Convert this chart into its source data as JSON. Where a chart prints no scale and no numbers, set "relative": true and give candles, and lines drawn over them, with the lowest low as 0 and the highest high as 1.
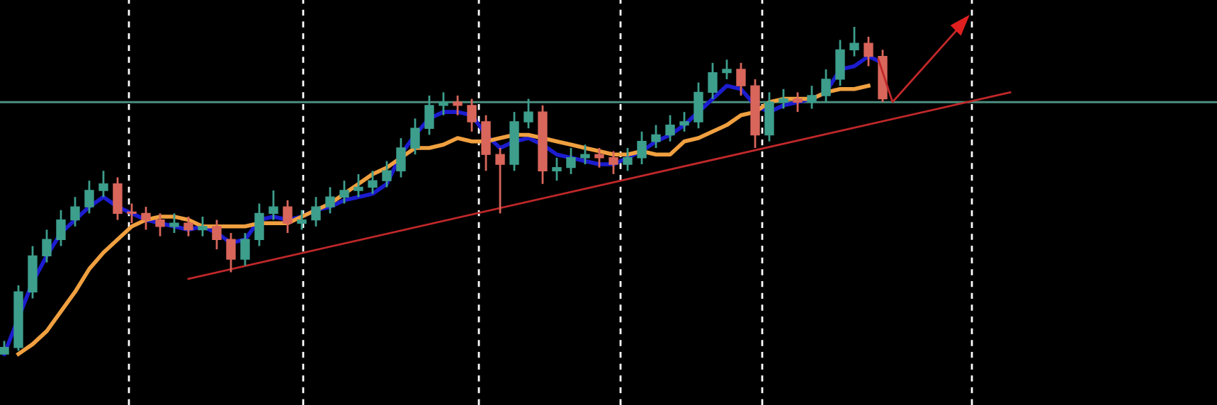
{
  "chart_data": {
    "type": "candlestick",
    "relative": true,
    "categories": [
      null,
      null,
      null,
      null,
      null,
      null,
      null,
      null,
      null,
      null,
      null,
      null,
      null,
      null,
      null,
      null,
      null,
      null,
      null,
      null,
      null,
      null,
      null,
      null,
      null,
      null,
      null,
      null,
      null,
      null,
      null,
      null,
      null,
      null,
      null,
      null,
      null,
      null,
      null,
      null,
      null,
      null,
      null,
      null,
      null,
      null,
      null,
      null,
      null,
      null,
      null,
      null,
      null,
      null,
      null,
      null,
      null,
      null,
      null,
      null,
      null,
      null,
      null,
      null,
      null,
      null,
      null,
      null,
      null,
      null,
      null,
      null,
      null,
      null,
      null,
      null,
      null,
      null,
      null,
      null,
      null,
      null,
      null,
      null,
      null,
      null
    ],
    "ohlc": [
      [
        0.0,
        0.04,
        0.0,
        0.02
      ],
      [
        0.02,
        0.21,
        0.01,
        0.19
      ],
      [
        0.19,
        0.33,
        0.17,
        0.3
      ],
      [
        0.3,
        0.38,
        0.28,
        0.35
      ],
      [
        0.35,
        0.44,
        0.33,
        0.41
      ],
      [
        0.41,
        0.48,
        0.39,
        0.45
      ],
      [
        0.45,
        0.53,
        0.43,
        0.5
      ],
      [
        0.5,
        0.56,
        0.48,
        0.52
      ],
      [
        0.52,
        0.54,
        0.41,
        0.43
      ],
      [
        0.43,
        0.46,
        0.4,
        0.43
      ],
      [
        0.43,
        0.45,
        0.38,
        0.41
      ],
      [
        0.41,
        0.43,
        0.36,
        0.39
      ],
      [
        0.39,
        0.43,
        0.37,
        0.4
      ],
      [
        0.4,
        0.42,
        0.36,
        0.38
      ],
      [
        0.38,
        0.42,
        0.36,
        0.39
      ],
      [
        0.39,
        0.41,
        0.32,
        0.35
      ],
      [
        0.35,
        0.37,
        0.25,
        0.29
      ],
      [
        0.29,
        0.37,
        0.27,
        0.35
      ],
      [
        0.35,
        0.46,
        0.33,
        0.43
      ],
      [
        0.43,
        0.5,
        0.41,
        0.45
      ],
      [
        0.45,
        0.47,
        0.37,
        0.4
      ],
      [
        0.4,
        0.44,
        0.38,
        0.41
      ],
      [
        0.41,
        0.48,
        0.39,
        0.45
      ],
      [
        0.45,
        0.51,
        0.43,
        0.48
      ],
      [
        0.48,
        0.53,
        0.46,
        0.5
      ],
      [
        0.5,
        0.55,
        0.48,
        0.51
      ],
      [
        0.51,
        0.56,
        0.49,
        0.53
      ],
      [
        0.53,
        0.59,
        0.51,
        0.56
      ],
      [
        0.56,
        0.66,
        0.54,
        0.63
      ],
      [
        0.63,
        0.72,
        0.61,
        0.69
      ],
      [
        0.69,
        0.79,
        0.67,
        0.76
      ],
      [
        0.76,
        0.8,
        0.73,
        0.77
      ],
      [
        0.77,
        0.79,
        0.73,
        0.76
      ],
      [
        0.76,
        0.78,
        0.68,
        0.71
      ],
      [
        0.71,
        0.73,
        0.56,
        0.61
      ],
      [
        0.61,
        0.63,
        0.43,
        0.58
      ],
      [
        0.58,
        0.74,
        0.56,
        0.71
      ],
      [
        0.71,
        0.78,
        0.69,
        0.74
      ],
      [
        0.74,
        0.76,
        0.52,
        0.56
      ],
      [
        0.56,
        0.6,
        0.53,
        0.57
      ],
      [
        0.57,
        0.63,
        0.55,
        0.6
      ],
      [
        0.6,
        0.64,
        0.58,
        0.61
      ],
      [
        0.61,
        0.63,
        0.57,
        0.6
      ],
      [
        0.6,
        0.62,
        0.55,
        0.58
      ],
      [
        0.58,
        0.63,
        0.56,
        0.6
      ],
      [
        0.6,
        0.68,
        0.58,
        0.65
      ],
      [
        0.65,
        0.7,
        0.63,
        0.67
      ],
      [
        0.67,
        0.73,
        0.65,
        0.7
      ],
      [
        0.7,
        0.74,
        0.68,
        0.71
      ],
      [
        0.71,
        0.83,
        0.69,
        0.8
      ],
      [
        0.8,
        0.89,
        0.78,
        0.86
      ],
      [
        0.86,
        0.9,
        0.84,
        0.87
      ],
      [
        0.87,
        0.89,
        0.79,
        0.82
      ],
      [
        0.82,
        0.84,
        0.63,
        0.67
      ],
      [
        0.67,
        0.8,
        0.65,
        0.77
      ],
      [
        0.77,
        0.81,
        0.75,
        0.78
      ],
      [
        0.78,
        0.8,
        0.74,
        0.77
      ],
      [
        0.77,
        0.82,
        0.75,
        0.79
      ],
      [
        0.79,
        0.87,
        0.77,
        0.84
      ],
      [
        0.84,
        0.96,
        0.82,
        0.93
      ],
      [
        0.93,
        1.0,
        0.91,
        0.95
      ],
      [
        0.95,
        0.97,
        0.88,
        0.91
      ],
      [
        0.91,
        0.93,
        0.77,
        0.78
      ],
      null,
      null,
      null,
      null,
      null,
      null,
      null,
      null,
      null,
      null,
      null,
      null,
      null,
      null,
      null,
      null,
      null,
      null,
      null,
      null,
      null,
      null,
      null
    ],
    "colors": [
      "#3d9e8c",
      "#3d9e8c",
      "#3d9e8c",
      "#3d9e8c",
      "#3d9e8c",
      "#3d9e8c",
      "#3d9e8c",
      "#3d9e8c",
      "#d9665b",
      "#d9665b",
      "#d9665b",
      "#d9665b",
      "#3d9e8c",
      "#d9665b",
      "#3d9e8c",
      "#d9665b",
      "#d9665b",
      "#3d9e8c",
      "#3d9e8c",
      "#3d9e8c",
      "#d9665b",
      "#3d9e8c",
      "#3d9e8c",
      "#3d9e8c",
      "#3d9e8c",
      "#3d9e8c",
      "#3d9e8c",
      "#3d9e8c",
      "#3d9e8c",
      "#3d9e8c",
      "#3d9e8c",
      "#3d9e8c",
      "#d9665b",
      "#d9665b",
      "#d9665b",
      "#d9665b",
      "#3d9e8c",
      "#3d9e8c",
      "#d9665b",
      "#3d9e8c",
      "#3d9e8c",
      "#3d9e8c",
      "#d9665b",
      "#d9665b",
      "#3d9e8c",
      "#3d9e8c",
      "#3d9e8c",
      "#3d9e8c",
      "#3d9e8c",
      "#3d9e8c",
      "#3d9e8c",
      "#3d9e8c",
      "#d9665b",
      "#d9665b",
      "#3d9e8c",
      "#3d9e8c",
      "#d9665b",
      "#3d9e8c",
      "#3d9e8c",
      "#3d9e8c",
      "#3d9e8c",
      "#d9665b",
      "#d9665b",
      null,
      null,
      null,
      null,
      null,
      null,
      null,
      null,
      null,
      null,
      null,
      null,
      null,
      null,
      null,
      null,
      null,
      null,
      null,
      null,
      null,
      null,
      null
    ],
    "series": [
      {
        "type": "line",
        "color": "#1c1ccf",
        "values": [
          0,
          0.11,
          0.22,
          0.3,
          0.37,
          0.41,
          0.45,
          0.48,
          0.45,
          0.43,
          0.41,
          0.4,
          0.39,
          0.38,
          0.39,
          0.37,
          0.34,
          0.35,
          0.41,
          0.42,
          0.41,
          0.42,
          0.44,
          0.45,
          0.47,
          0.48,
          0.49,
          0.52,
          0.61,
          0.67,
          0.72,
          0.74,
          0.74,
          0.73,
          0.67,
          0.63,
          0.65,
          0.66,
          0.64,
          0.61,
          0.6,
          0.59,
          0.58,
          0.58,
          0.6,
          0.62,
          0.65,
          0.67,
          0.7,
          0.74,
          0.78,
          0.82,
          0.81,
          0.76,
          0.74,
          0.76,
          0.77,
          0.78,
          0.8,
          0.87,
          0.88,
          0.91,
          0.89,
          null,
          null,
          null,
          null,
          null,
          null,
          null,
          null,
          null,
          null,
          null,
          null,
          null,
          null,
          null,
          null,
          null,
          null,
          null,
          null,
          null,
          null,
          null
        ]
      },
      {
        "type": "line",
        "color": "#f0a040",
        "values": [
          null,
          0.0,
          0.03,
          0.07,
          0.13,
          0.19,
          0.26,
          0.31,
          0.35,
          0.39,
          0.41,
          0.42,
          0.42,
          0.41,
          0.39,
          0.39,
          0.39,
          0.39,
          0.4,
          0.4,
          0.4,
          0.42,
          0.44,
          0.46,
          0.49,
          0.52,
          0.55,
          0.57,
          0.6,
          0.63,
          0.63,
          0.64,
          0.66,
          0.65,
          0.65,
          0.66,
          0.67,
          0.67,
          0.66,
          0.65,
          0.64,
          0.63,
          0.62,
          0.61,
          0.61,
          0.62,
          0.61,
          0.61,
          0.65,
          0.66,
          0.68,
          0.7,
          0.73,
          0.74,
          0.77,
          0.78,
          0.78,
          0.78,
          0.8,
          0.81,
          0.81,
          0.82,
          null,
          null,
          null,
          null,
          null,
          null,
          null,
          null,
          null,
          null,
          null,
          null,
          null,
          null,
          null,
          null,
          null,
          null,
          null,
          null,
          null,
          null,
          null,
          null
        ]
      },
      {
        "type": "line",
        "color": "#c0282a",
        "values": [
          null,
          null,
          null,
          null,
          null,
          null,
          null,
          null,
          null,
          null,
          null,
          null,
          null,
          0.23,
          null,
          null,
          null,
          null,
          null,
          null,
          null,
          null,
          null,
          null,
          null,
          null,
          null,
          null,
          null,
          null,
          null,
          null,
          null,
          null,
          null,
          null,
          null,
          null,
          null,
          null,
          null,
          null,
          null,
          null,
          null,
          null,
          null,
          null,
          null,
          null,
          null,
          null,
          null,
          null,
          null,
          null,
          null,
          null,
          null,
          null,
          null,
          null,
          null,
          null,
          null,
          null,
          null,
          null,
          null,
          null,
          null,
          0.8,
          null,
          null,
          null,
          null,
          null,
          null,
          null,
          null,
          null,
          null,
          null,
          null,
          null,
          null
        ]
      }
    ],
    "ref_lines": [
      {
        "axis": "y",
        "value": 0.77,
        "color": "#4d8f7f"
      }
    ]
  }
}
